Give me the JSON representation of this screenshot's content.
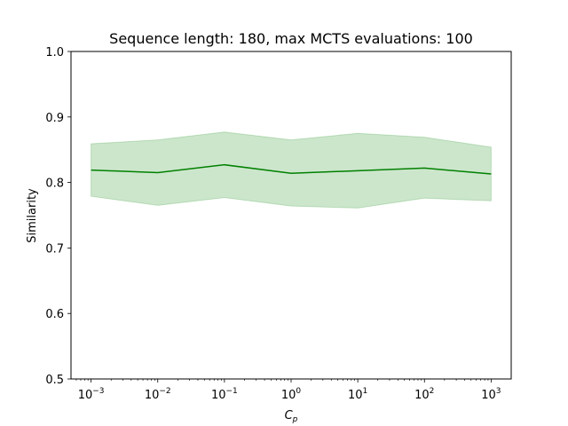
{
  "chart_data": {
    "type": "line",
    "title": "Sequence length: 180, max MCTS evaluations: 100",
    "xlabel_main": "C",
    "xlabel_sub": "p",
    "ylabel": "Similarity",
    "xscale": "log",
    "xlim": [
      0.0005,
      2000
    ],
    "ylim": [
      0.5,
      1.0
    ],
    "grid": false,
    "x": [
      0.001,
      0.01,
      0.1,
      1,
      10,
      100,
      1000
    ],
    "x_tick_exponents": [
      "−3",
      "−2",
      "−1",
      "0",
      "1",
      "2",
      "3"
    ],
    "y_ticks": [
      "0.5",
      "0.6",
      "0.7",
      "0.8",
      "0.9",
      "1.0"
    ],
    "series": [
      {
        "values": [
          0.819,
          0.815,
          0.827,
          0.814,
          0.818,
          0.822,
          0.813
        ],
        "band_upper": [
          0.859,
          0.865,
          0.877,
          0.865,
          0.875,
          0.869,
          0.854
        ],
        "band_lower": [
          0.779,
          0.765,
          0.777,
          0.764,
          0.761,
          0.776,
          0.772
        ],
        "color": "#008000",
        "band_color": "#008000"
      }
    ]
  }
}
